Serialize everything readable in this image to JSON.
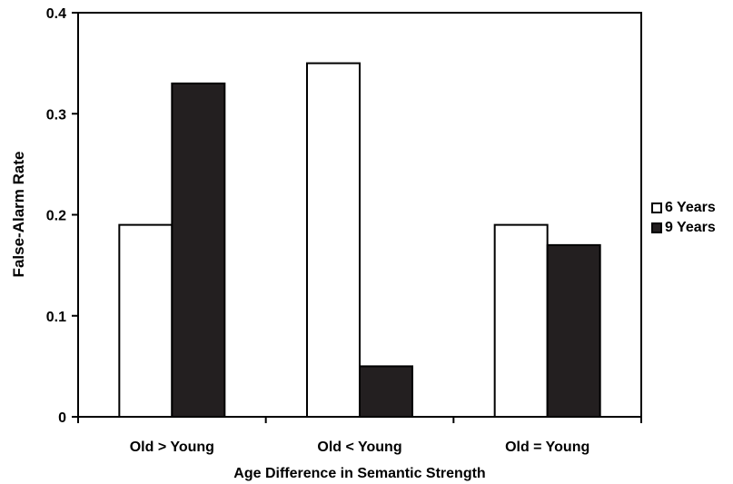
{
  "chart_data": {
    "type": "bar",
    "title": "",
    "xlabel": "Age Difference in Semantic Strength",
    "ylabel": "False-Alarm Rate",
    "categories": [
      "Old > Young",
      "Old < Young",
      "Old = Young"
    ],
    "series": [
      {
        "name": "6 Years",
        "values": [
          0.19,
          0.35,
          0.19
        ],
        "color": "#ffffff"
      },
      {
        "name": "9 Years",
        "values": [
          0.33,
          0.05,
          0.17
        ],
        "color": "#231f20"
      }
    ],
    "ylim": [
      0,
      0.4
    ],
    "yticks": [
      "0",
      "0.1",
      "0.2",
      "0.3",
      "0.4"
    ],
    "grid": false,
    "legend_position": "right"
  }
}
